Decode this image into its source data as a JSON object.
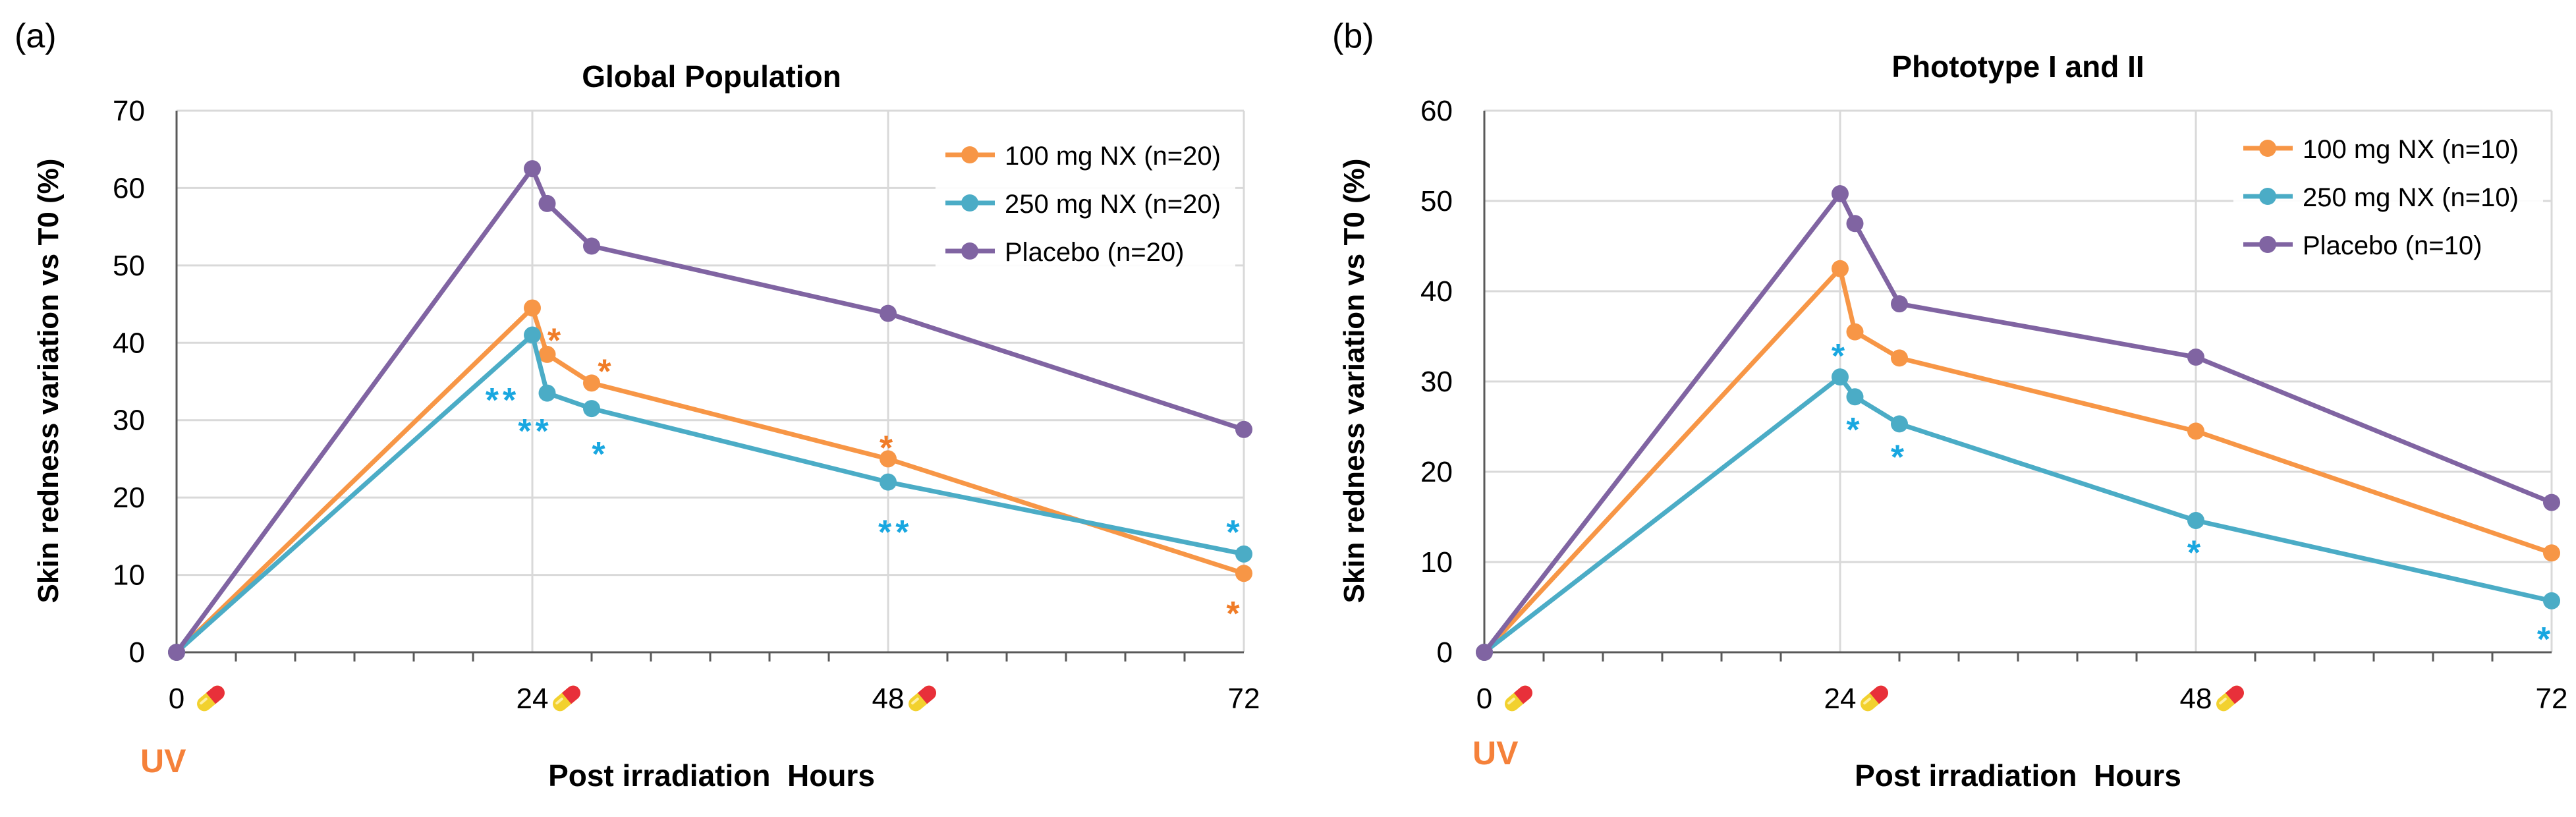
{
  "colors": {
    "orange": "#F79646",
    "blue": "#4BACC6",
    "purple": "#8064A2",
    "sig_orange": "#F07C27",
    "sig_blue": "#19A7E0",
    "uv": "#F5813A",
    "grid": "#D9D9D9",
    "axis": "#595959"
  },
  "chart_data": [
    {
      "type": "line",
      "panel_label": "(a)",
      "title": "Global Population",
      "xlabel": "Post irradiation  Hours",
      "ylabel": "Skin redness variation vs T0 (%)",
      "xlim": [
        0,
        72
      ],
      "ylim": [
        0,
        70
      ],
      "yticks": [
        0,
        10,
        20,
        30,
        40,
        50,
        60,
        70
      ],
      "xticks": [
        "0",
        "24",
        "48",
        "72"
      ],
      "xtick_values": [
        0,
        24,
        48,
        72
      ],
      "pill_icon_at": [
        0,
        24,
        48
      ],
      "uv_label": "UV",
      "legend_position": "top-right",
      "series": [
        {
          "name": "100 mg NX (n=20)",
          "color": "orange",
          "x": [
            0,
            24,
            25,
            28,
            48,
            72
          ],
          "y": [
            0,
            44.5,
            38.5,
            34.8,
            25.0,
            10.2
          ]
        },
        {
          "name": "250 mg NX (n=20)",
          "color": "blue",
          "x": [
            0,
            24,
            25,
            28,
            48,
            72
          ],
          "y": [
            0,
            41.0,
            33.5,
            31.5,
            22.0,
            12.7
          ]
        },
        {
          "name": "Placebo (n=20)",
          "color": "purple",
          "x": [
            0,
            24,
            25,
            28,
            48,
            72
          ],
          "y": [
            0,
            62.5,
            58.0,
            52.5,
            43.8,
            28.8
          ]
        }
      ],
      "annotations": [
        {
          "text": "*",
          "color": "sig_orange",
          "x": 25.6,
          "y": 40.5
        },
        {
          "text": "*",
          "color": "sig_orange",
          "x": 29.0,
          "y": 36.5
        },
        {
          "text": "*",
          "color": "sig_orange",
          "x": 48.0,
          "y": 26.6
        },
        {
          "text": "*",
          "color": "sig_orange",
          "x": 71.4,
          "y": 5.2
        },
        {
          "text": "**",
          "color": "sig_blue",
          "x": 22.0,
          "y": 32.8
        },
        {
          "text": "**",
          "color": "sig_blue",
          "x": 24.2,
          "y": 28.8
        },
        {
          "text": "*",
          "color": "sig_blue",
          "x": 28.6,
          "y": 25.8
        },
        {
          "text": "**",
          "color": "sig_blue",
          "x": 48.5,
          "y": 15.7
        },
        {
          "text": "*",
          "color": "sig_blue",
          "x": 71.4,
          "y": 15.7
        }
      ]
    },
    {
      "type": "line",
      "panel_label": "(b)",
      "title": "Phototype I and II",
      "xlabel": "Post irradiation  Hours",
      "ylabel": "Skin redness variation vs T0 (%)",
      "xlim": [
        0,
        72
      ],
      "ylim": [
        0,
        60
      ],
      "yticks": [
        0,
        10,
        20,
        30,
        40,
        50,
        60
      ],
      "xticks": [
        "0",
        "24",
        "48",
        "72"
      ],
      "xtick_values": [
        0,
        24,
        48,
        72
      ],
      "pill_icon_at": [
        0,
        24,
        48
      ],
      "uv_label": "UV",
      "legend_position": "top-right",
      "series": [
        {
          "name": "100 mg NX (n=10)",
          "color": "orange",
          "x": [
            0,
            24,
            25,
            28,
            48,
            72
          ],
          "y": [
            0,
            42.5,
            35.5,
            32.6,
            24.5,
            11.0
          ]
        },
        {
          "name": "250 mg NX (n=10)",
          "color": "blue",
          "x": [
            0,
            24,
            25,
            28,
            48,
            72
          ],
          "y": [
            0,
            30.5,
            28.3,
            25.3,
            14.6,
            5.7
          ]
        },
        {
          "name": "Placebo (n=10)",
          "color": "purple",
          "x": [
            0,
            24,
            25,
            28,
            48,
            72
          ],
          "y": [
            0,
            50.8,
            47.5,
            38.6,
            32.7,
            16.6
          ]
        }
      ],
      "annotations": [
        {
          "text": "*",
          "color": "sig_blue",
          "x": 24.0,
          "y": 33.0
        },
        {
          "text": "*",
          "color": "sig_blue",
          "x": 25.0,
          "y": 24.8
        },
        {
          "text": "*",
          "color": "sig_blue",
          "x": 28.0,
          "y": 21.8
        },
        {
          "text": "*",
          "color": "sig_blue",
          "x": 48.0,
          "y": 11.2
        },
        {
          "text": "*",
          "color": "sig_blue",
          "x": 71.6,
          "y": 1.6
        }
      ]
    }
  ]
}
